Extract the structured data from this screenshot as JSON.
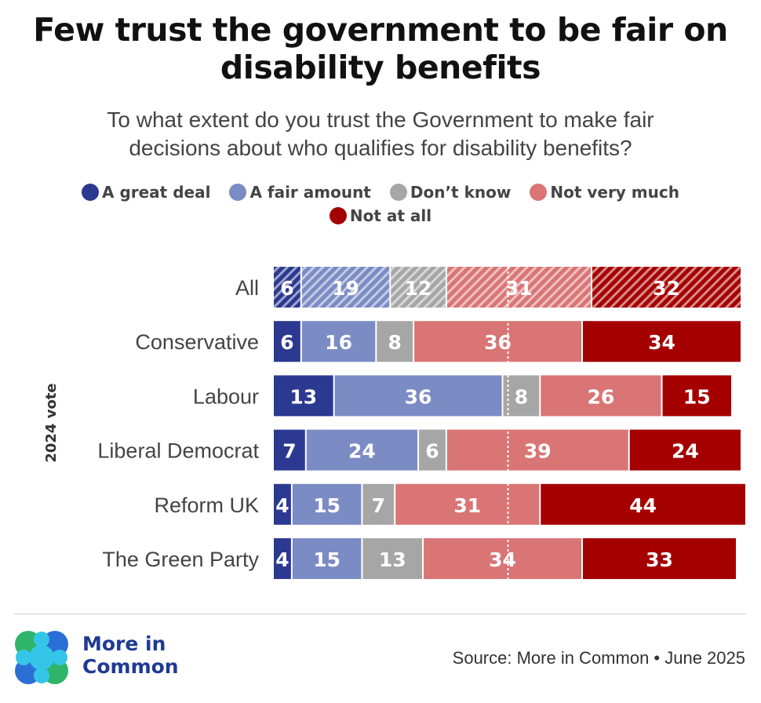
{
  "title_line1": "Few trust the government to be fair on",
  "title_line2": "disability benefits",
  "subtitle_line1": "To what extent do you trust the Government to make fair",
  "subtitle_line2": "decisions about who qualifies for disability benefits?",
  "source": "Source: More in Common • June 2025",
  "logo": {
    "line1": "More in",
    "line2": "Common"
  },
  "colors": {
    "great_deal": "#2b3990",
    "fair_amount": "#7b8bc4",
    "dont_know": "#a6a6a6",
    "not_very_much": "#d97575",
    "not_at_all": "#a50000"
  },
  "chart_data": {
    "type": "bar",
    "orientation": "horizontal",
    "stacked": true,
    "title": "Few trust the government to be fair on disability benefits",
    "subtitle": "To what extent do you trust the Government to make fair decisions about who qualifies for disability benefits?",
    "ylabel": "2024 vote",
    "xlim": [
      0,
      100
    ],
    "midline": 50,
    "categories": [
      "All",
      "Conservative",
      "Labour",
      "Liberal Democrat",
      "Reform UK",
      "The Green Party"
    ],
    "series": [
      {
        "name": "A great deal",
        "color": "#2b3990",
        "values": [
          6,
          6,
          13,
          7,
          4,
          4
        ]
      },
      {
        "name": "A fair amount",
        "color": "#7b8bc4",
        "values": [
          19,
          16,
          36,
          24,
          15,
          15
        ]
      },
      {
        "name": "Don’t know",
        "color": "#a6a6a6",
        "values": [
          12,
          8,
          8,
          6,
          7,
          13
        ]
      },
      {
        "name": "Not very much",
        "color": "#d97575",
        "values": [
          31,
          36,
          26,
          39,
          31,
          34
        ]
      },
      {
        "name": "Not at all",
        "color": "#a50000",
        "values": [
          32,
          34,
          15,
          24,
          44,
          33
        ]
      }
    ]
  }
}
